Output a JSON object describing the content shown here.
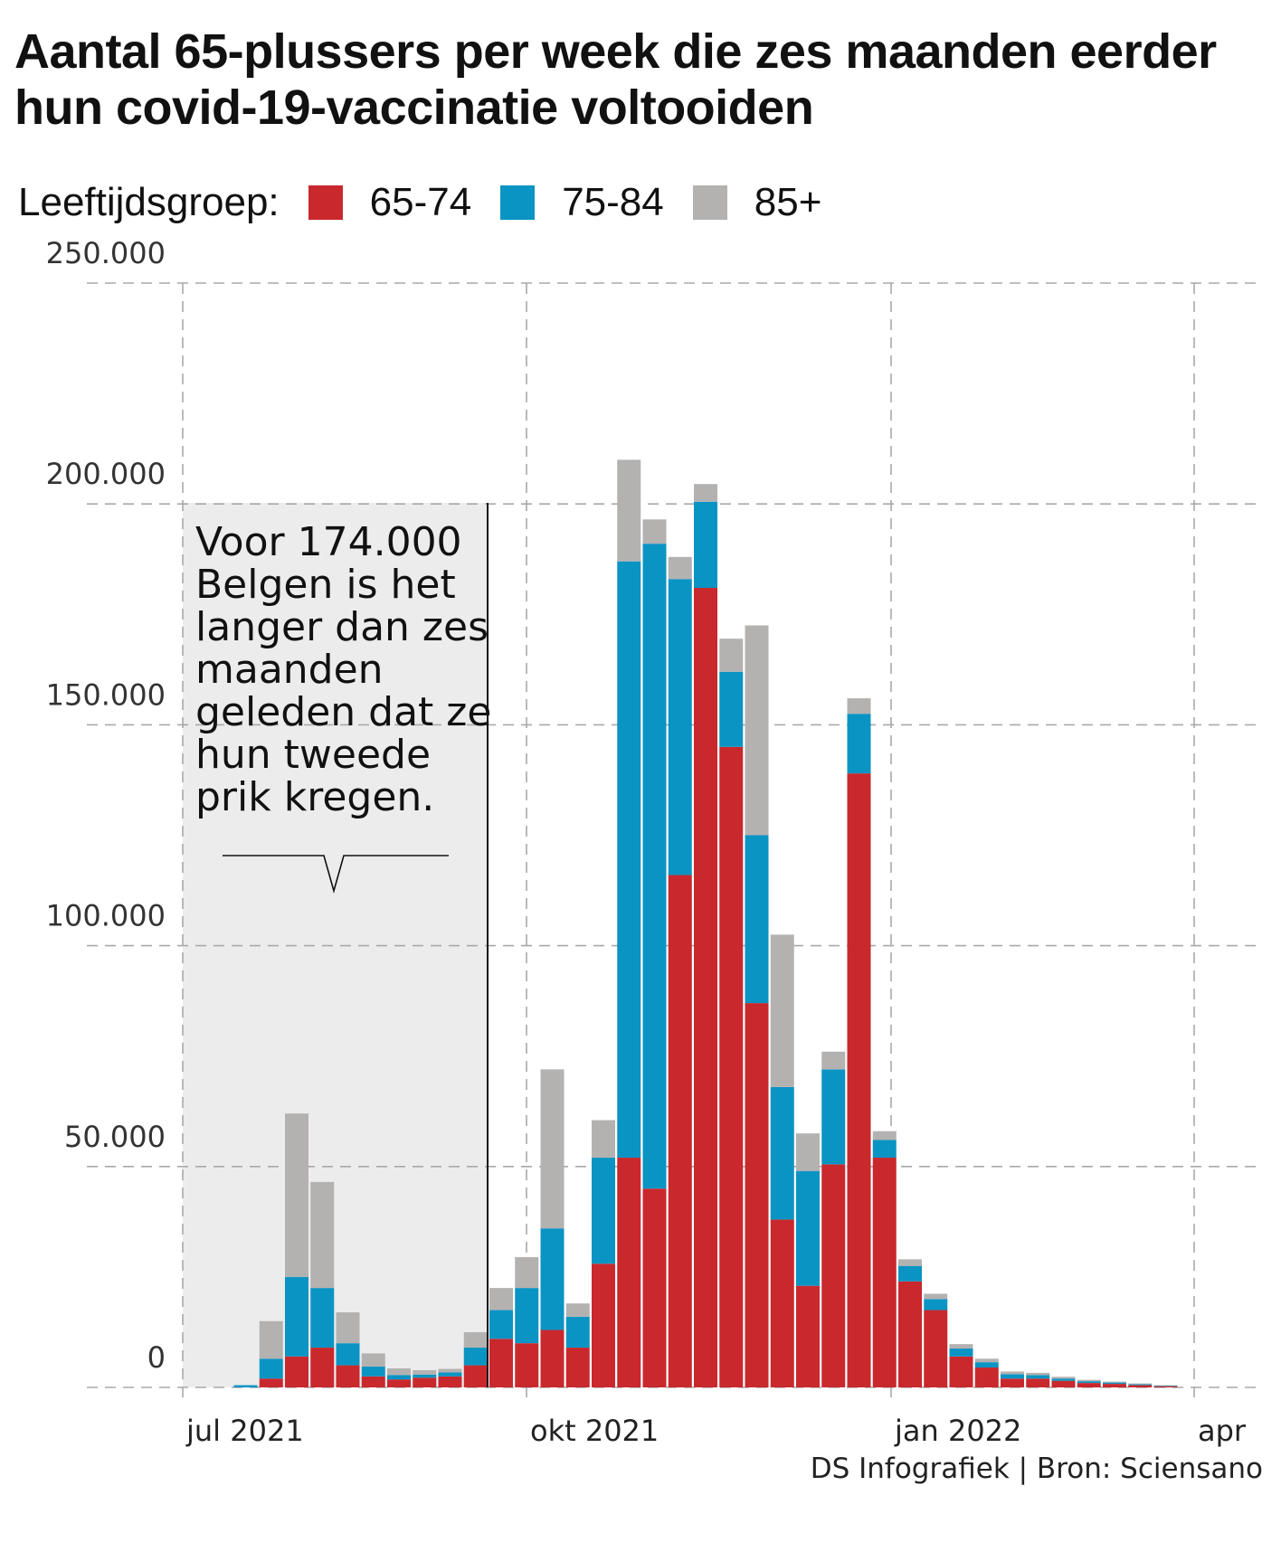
{
  "title": "Aantal 65-plussers per week die zes maanden eerder hun covid-19-vaccinatie voltooiden",
  "legend": {
    "label": "Leeftijdsgroep:",
    "items": [
      {
        "name": "65-74",
        "color": "#c9282d"
      },
      {
        "name": "75-84",
        "color": "#0a94c3"
      },
      {
        "name": "85+",
        "color": "#b4b1b1"
      }
    ]
  },
  "annotation": {
    "lines": [
      "Voor 174.000",
      "Belgen is het",
      "langer dan zes",
      "maanden",
      "geleden dat ze",
      "hun tweede",
      "prik kregen."
    ]
  },
  "source": "DS Infografiek | Bron: Sciensano",
  "chart_data": {
    "type": "bar",
    "stacked": true,
    "y_ticks": [
      "0",
      "50.000",
      "100.000",
      "150.000",
      "200.000",
      "250.000"
    ],
    "y_tick_values": [
      0,
      50000,
      100000,
      150000,
      200000,
      250000
    ],
    "ylim": [
      0,
      250000
    ],
    "x_ticks": [
      "jul 2021",
      "okt 2021",
      "jan 2022",
      "apr"
    ],
    "grid": true,
    "legend_position": "top-left",
    "categories": [
      "1",
      "2",
      "3",
      "4",
      "5",
      "6",
      "7",
      "8",
      "9",
      "10",
      "11",
      "12",
      "13",
      "14",
      "15",
      "16",
      "17",
      "18",
      "19",
      "20",
      "21",
      "22",
      "23",
      "24",
      "25",
      "26",
      "27",
      "28",
      "29",
      "30",
      "31",
      "32",
      "33",
      "34",
      "35",
      "36",
      "37",
      "38",
      "39",
      "40",
      "41",
      "42",
      "43",
      "44",
      "45",
      "46",
      "47",
      "48",
      "49",
      "50"
    ],
    "series": [
      {
        "name": "65-74",
        "color": "#c9282d",
        "values": [
          0,
          0,
          0,
          2000,
          7000,
          9000,
          5000,
          2500,
          1800,
          2200,
          2500,
          5000,
          11000,
          10000,
          13000,
          9000,
          28000,
          52000,
          45000,
          116000,
          181000,
          145000,
          87000,
          38000,
          23000,
          50500,
          139000,
          52000,
          24000,
          17500,
          7000,
          4500,
          2000,
          2000,
          1500,
          1000,
          800,
          500,
          300,
          0,
          0,
          0,
          0,
          0,
          0,
          0,
          0,
          0,
          0,
          0
        ]
      },
      {
        "name": "75-84",
        "color": "#0a94c3",
        "values": [
          0,
          0,
          500,
          4500,
          18000,
          13500,
          5000,
          2200,
          1000,
          700,
          900,
          4000,
          6500,
          12500,
          23000,
          7000,
          24000,
          135000,
          146000,
          67000,
          19500,
          17000,
          38000,
          30000,
          26000,
          21500,
          13500,
          4000,
          3500,
          2500,
          1800,
          1200,
          1000,
          800,
          500,
          400,
          300,
          200,
          100,
          0,
          0,
          0,
          0,
          0,
          0,
          0,
          0,
          0,
          0,
          0
        ]
      },
      {
        "name": "85+",
        "color": "#b4b1b1",
        "values": [
          0,
          0,
          0,
          8500,
          37000,
          24000,
          7000,
          3000,
          1500,
          1000,
          800,
          3500,
          5000,
          7000,
          36000,
          3000,
          8500,
          23000,
          5500,
          5000,
          4000,
          7500,
          47500,
          34500,
          8500,
          4000,
          3500,
          2000,
          1500,
          1200,
          1000,
          800,
          600,
          500,
          400,
          300,
          200,
          200,
          100,
          0,
          0,
          0,
          0,
          0,
          0,
          0,
          0,
          0,
          0,
          0
        ]
      }
    ]
  }
}
